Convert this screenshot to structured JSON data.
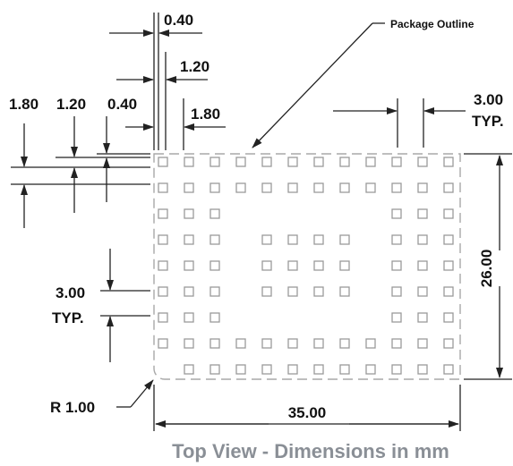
{
  "labels": {
    "package_outline": "Package Outline",
    "pitch_top_value": "3.00",
    "pitch_top_suffix": "TYP.",
    "pitch_left_value": "3.00",
    "pitch_left_suffix": "TYP.",
    "height": "26.00",
    "width": "35.00",
    "corner_radius": "R 1.00",
    "pad_0_40_top": "0.40",
    "pad_1_20_top": "1.20",
    "pad_1_80_top": "1.80",
    "left_1_80": "1.80",
    "left_1_20": "1.20",
    "left_0_40": "0.40",
    "caption": "Top View - Dimensions in mm"
  },
  "colors": {
    "pad_stroke": "#9a9a9a",
    "outline_stroke": "#a8a8a8",
    "line": "#222222",
    "caption": "#8a8f96"
  },
  "grid": {
    "rows": [
      [
        1,
        1,
        1,
        1,
        1,
        1,
        1,
        1,
        1,
        1,
        1,
        1
      ],
      [
        1,
        1,
        1,
        1,
        1,
        1,
        1,
        1,
        1,
        1,
        1,
        1
      ],
      [
        1,
        1,
        1,
        0,
        0,
        0,
        0,
        0,
        0,
        1,
        1,
        1
      ],
      [
        1,
        1,
        1,
        0,
        1,
        1,
        1,
        1,
        0,
        1,
        1,
        1
      ],
      [
        1,
        1,
        1,
        0,
        1,
        1,
        1,
        1,
        0,
        1,
        1,
        1
      ],
      [
        1,
        1,
        1,
        0,
        1,
        1,
        1,
        1,
        0,
        1,
        1,
        1
      ],
      [
        1,
        1,
        1,
        0,
        0,
        0,
        0,
        0,
        0,
        1,
        1,
        1
      ],
      [
        1,
        1,
        1,
        1,
        1,
        1,
        1,
        1,
        1,
        1,
        1,
        1
      ],
      [
        0,
        1,
        1,
        1,
        1,
        1,
        1,
        1,
        1,
        1,
        1,
        1
      ]
    ]
  }
}
